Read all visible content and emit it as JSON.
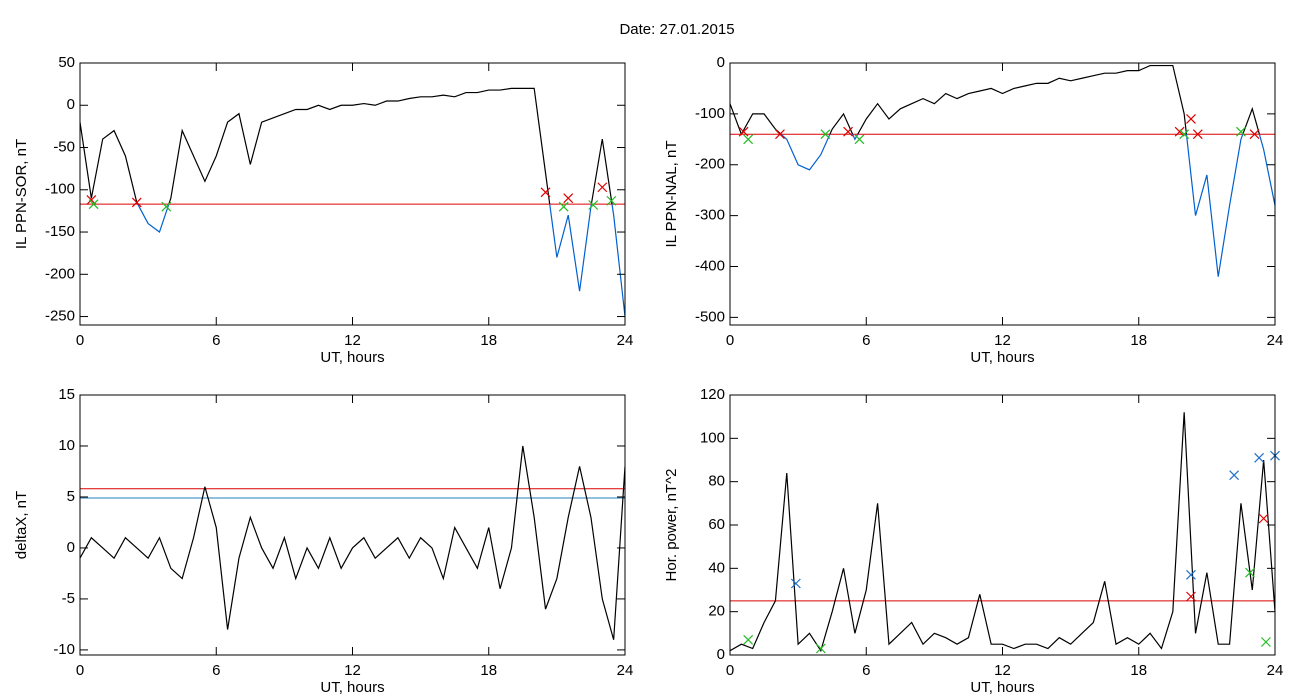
{
  "title": "Date:  27.01.2015",
  "chart_data": [
    {
      "type": "line",
      "ylabel": "IL PPN-SOR, nT",
      "xlabel": "UT, hours",
      "xlim": [
        0,
        24
      ],
      "xticks": [
        0,
        6,
        12,
        18,
        24
      ],
      "ylim": [
        -260,
        50
      ],
      "yticks": [
        -250,
        -200,
        -150,
        -100,
        -50,
        0,
        50
      ],
      "x": [
        0,
        0.5,
        1,
        1.5,
        2,
        2.5,
        3,
        3.5,
        4,
        4.5,
        5,
        5.5,
        6,
        6.5,
        7,
        7.5,
        8,
        8.5,
        9,
        9.5,
        10,
        10.5,
        11,
        11.5,
        12,
        12.5,
        13,
        13.5,
        14,
        14.5,
        15,
        15.5,
        16,
        16.5,
        17,
        17.5,
        18,
        18.5,
        19,
        19.5,
        20,
        20.5,
        21,
        21.5,
        22,
        22.5,
        23,
        23.5,
        24
      ],
      "series": [
        {
          "color": "#000000",
          "below_color": "#0060d0",
          "values": [
            -20,
            -110,
            -40,
            -30,
            -60,
            -115,
            -140,
            -150,
            -110,
            -30,
            -60,
            -90,
            -60,
            -20,
            -10,
            -70,
            -20,
            -15,
            -10,
            -5,
            -5,
            0,
            -5,
            0,
            0,
            2,
            0,
            5,
            5,
            8,
            10,
            10,
            12,
            10,
            15,
            15,
            18,
            18,
            20,
            20,
            20,
            -80,
            -180,
            -130,
            -220,
            -120,
            -40,
            -130,
            -250
          ]
        }
      ],
      "hlines": [
        {
          "value": -117,
          "color": "#dd0000"
        }
      ],
      "markers": [
        {
          "color": "#dd0000",
          "x": [
            0.5,
            2.5,
            20.5,
            21.5,
            23
          ],
          "y": [
            -112,
            -115,
            -103,
            -110,
            -97
          ]
        },
        {
          "color": "#22bb22",
          "x": [
            0.6,
            3.8,
            21.3,
            22.6,
            23.4
          ],
          "y": [
            -117,
            -120,
            -120,
            -118,
            -113
          ]
        }
      ]
    },
    {
      "type": "line",
      "ylabel": "IL PPN-NAL, nT",
      "xlabel": "UT, hours",
      "xlim": [
        0,
        24
      ],
      "xticks": [
        0,
        6,
        12,
        18,
        24
      ],
      "ylim": [
        -515,
        0
      ],
      "yticks": [
        -500,
        -400,
        -300,
        -200,
        -100,
        0
      ],
      "x": [
        0,
        0.5,
        1,
        1.5,
        2,
        2.5,
        3,
        3.5,
        4,
        4.5,
        5,
        5.5,
        6,
        6.5,
        7,
        7.5,
        8,
        8.5,
        9,
        9.5,
        10,
        10.5,
        11,
        11.5,
        12,
        12.5,
        13,
        13.5,
        14,
        14.5,
        15,
        15.5,
        16,
        16.5,
        17,
        17.5,
        18,
        18.5,
        19,
        19.5,
        20,
        20.5,
        21,
        21.5,
        22,
        22.5,
        23,
        23.5,
        24
      ],
      "series": [
        {
          "color": "#000000",
          "below_color": "#0060d0",
          "values": [
            -80,
            -140,
            -100,
            -100,
            -130,
            -150,
            -200,
            -210,
            -180,
            -130,
            -100,
            -150,
            -110,
            -80,
            -110,
            -90,
            -80,
            -70,
            -80,
            -60,
            -70,
            -60,
            -55,
            -50,
            -60,
            -50,
            -45,
            -40,
            -40,
            -30,
            -35,
            -30,
            -25,
            -20,
            -20,
            -15,
            -15,
            -5,
            -5,
            -5,
            -100,
            -300,
            -220,
            -420,
            -280,
            -150,
            -90,
            -170,
            -280
          ]
        }
      ],
      "hlines": [
        {
          "value": -140,
          "color": "#dd0000"
        }
      ],
      "markers": [
        {
          "color": "#dd0000",
          "x": [
            0.6,
            2.2,
            5.2,
            19.8,
            20.3,
            20.6,
            23.1
          ],
          "y": [
            -135,
            -140,
            -135,
            -135,
            -110,
            -140,
            -140
          ]
        },
        {
          "color": "#22bb22",
          "x": [
            0.8,
            4.2,
            5.7,
            20,
            22.5
          ],
          "y": [
            -150,
            -140,
            -150,
            -140,
            -135
          ]
        }
      ]
    },
    {
      "type": "line",
      "ylabel": "deltaX, nT",
      "xlabel": "UT, hours",
      "xlim": [
        0,
        24
      ],
      "xticks": [
        0,
        6,
        12,
        18,
        24
      ],
      "ylim": [
        -10.5,
        15
      ],
      "yticks": [
        -10,
        -5,
        0,
        5,
        10,
        15
      ],
      "x": [
        0,
        0.5,
        1,
        1.5,
        2,
        2.5,
        3,
        3.5,
        4,
        4.5,
        5,
        5.5,
        6,
        6.5,
        7,
        7.5,
        8,
        8.5,
        9,
        9.5,
        10,
        10.5,
        11,
        11.5,
        12,
        12.5,
        13,
        13.5,
        14,
        14.5,
        15,
        15.5,
        16,
        16.5,
        17,
        17.5,
        18,
        18.5,
        19,
        19.5,
        20,
        20.5,
        21,
        21.5,
        22,
        22.5,
        23,
        23.5,
        24
      ],
      "series": [
        {
          "color": "#000000",
          "values": [
            -1,
            1,
            0,
            -1,
            1,
            0,
            -1,
            1,
            -2,
            -3,
            1,
            6,
            2,
            -8,
            -1,
            3,
            0,
            -2,
            1,
            -3,
            0,
            -2,
            1,
            -2,
            0,
            1,
            -1,
            0,
            1,
            -1,
            1,
            0,
            -3,
            2,
            0,
            -2,
            2,
            -4,
            0,
            10,
            3,
            -6,
            -3,
            3,
            8,
            3,
            -5,
            -9,
            8
          ]
        }
      ],
      "hlines": [
        {
          "value": 5.8,
          "color": "#dd0000"
        },
        {
          "value": 4.9,
          "color": "#2080c0"
        }
      ],
      "markers": []
    },
    {
      "type": "line",
      "ylabel": "Hor. power, nT^2",
      "xlabel": "UT, hours",
      "xlim": [
        0,
        24
      ],
      "xticks": [
        0,
        6,
        12,
        18,
        24
      ],
      "ylim": [
        0,
        120
      ],
      "yticks": [
        0,
        20,
        40,
        60,
        80,
        100,
        120
      ],
      "x": [
        0,
        0.5,
        1,
        1.5,
        2,
        2.5,
        3,
        3.5,
        4,
        4.5,
        5,
        5.5,
        6,
        6.5,
        7,
        7.5,
        8,
        8.5,
        9,
        9.5,
        10,
        10.5,
        11,
        11.5,
        12,
        12.5,
        13,
        13.5,
        14,
        14.5,
        15,
        15.5,
        16,
        16.5,
        17,
        17.5,
        18,
        18.5,
        19,
        19.5,
        20,
        20.5,
        21,
        21.5,
        22,
        22.5,
        23,
        23.5,
        24
      ],
      "series": [
        {
          "color": "#000000",
          "values": [
            2,
            5,
            3,
            15,
            25,
            84,
            5,
            10,
            2,
            20,
            40,
            10,
            30,
            70,
            5,
            10,
            15,
            5,
            10,
            8,
            5,
            8,
            28,
            5,
            5,
            3,
            5,
            5,
            3,
            8,
            5,
            10,
            15,
            34,
            5,
            8,
            5,
            10,
            3,
            20,
            112,
            10,
            38,
            5,
            5,
            70,
            30,
            90,
            20
          ]
        }
      ],
      "hlines": [
        {
          "value": 25,
          "color": "#dd0000"
        }
      ],
      "markers": [
        {
          "color": "#2070c8",
          "x": [
            2.9,
            20.3,
            22.2,
            23.3,
            24
          ],
          "y": [
            33,
            37,
            83,
            91,
            92
          ]
        },
        {
          "color": "#dd0000",
          "x": [
            20.3,
            23.5
          ],
          "y": [
            27,
            63
          ]
        },
        {
          "color": "#22bb22",
          "x": [
            0.8,
            4,
            22.9,
            23.6
          ],
          "y": [
            7,
            3,
            38,
            6
          ]
        }
      ]
    }
  ]
}
